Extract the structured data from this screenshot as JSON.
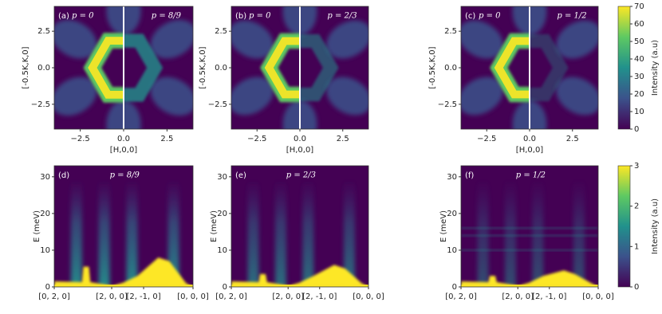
{
  "chart_data": [
    {
      "type": "heatmap",
      "panel_label": "(a)",
      "annotations": [
        "p = 0",
        "p = 8/9"
      ],
      "xlabel": "[H,0,0]",
      "ylabel": "[-0.5K,K,0]",
      "xlim": [
        -4,
        4
      ],
      "ylim": [
        -4.2,
        4.2
      ],
      "xticks": [
        {
          "value": -2.5,
          "label": "−2.5"
        },
        {
          "value": 0,
          "label": "0.0"
        },
        2.5
      ],
      "yticks": [
        {
          "value": -2.5,
          "label": "−2.5"
        },
        {
          "value": 0,
          "label": "0.0"
        },
        2.5
      ]
    },
    {
      "type": "heatmap",
      "panel_label": "(b)",
      "annotations": [
        "p = 0",
        "p = 2/3"
      ],
      "xlabel": "[H,0,0]",
      "ylabel": "[-0.5K,K,0]",
      "xlim": [
        -4,
        4
      ],
      "ylim": [
        -4.2,
        4.2
      ],
      "xticks": [
        {
          "value": -2.5,
          "label": "−2.5"
        },
        {
          "value": 0,
          "label": "0.0"
        },
        2.5
      ],
      "yticks": [
        {
          "value": -2.5,
          "label": "−2.5"
        },
        {
          "value": 0,
          "label": "0.0"
        },
        2.5
      ]
    },
    {
      "type": "heatmap",
      "panel_label": "(c)",
      "annotations": [
        "p = 0",
        "p = 1/2"
      ],
      "xlabel": "[H,0,0]",
      "ylabel": "[-0.5K,K,0]",
      "xlim": [
        -4,
        4
      ],
      "ylim": [
        -4.2,
        4.2
      ],
      "xticks": [
        {
          "value": -2.5,
          "label": "−2.5"
        },
        {
          "value": 0,
          "label": "0.0"
        },
        2.5
      ],
      "yticks": [
        {
          "value": -2.5,
          "label": "−2.5"
        },
        {
          "value": 0,
          "label": "0.0"
        },
        2.5
      ],
      "colorbar": {
        "label": "Intensity (a.u)",
        "lim": [
          0,
          70
        ],
        "ticks": [
          0,
          10,
          20,
          30,
          40,
          50,
          60,
          70
        ]
      }
    },
    {
      "type": "heatmap",
      "panel_label": "(d)",
      "annotations": [
        "p = 8/9"
      ],
      "ylabel": "E (meV)",
      "xlim": [
        0,
        1
      ],
      "ylim": [
        0,
        33
      ],
      "xticks": [
        {
          "value": 0,
          "label": "[0, 2, 0]"
        },
        {
          "value": 0.414,
          "label": "[2, 0, 0]"
        },
        {
          "value": 0.644,
          "label": "[2, -1, 0]"
        },
        {
          "value": 1,
          "label": "[0, 0, 0]"
        }
      ],
      "yticks": [
        0,
        10,
        20,
        30
      ]
    },
    {
      "type": "heatmap",
      "panel_label": "(e)",
      "annotations": [
        "p = 2/3"
      ],
      "ylabel": "E (meV)",
      "xlim": [
        0,
        1
      ],
      "ylim": [
        0,
        33
      ],
      "xticks": [
        {
          "value": 0,
          "label": "[0, 2, 0]"
        },
        {
          "value": 0.414,
          "label": "[2, 0, 0]"
        },
        {
          "value": 0.644,
          "label": "[2, -1, 0]"
        },
        {
          "value": 1,
          "label": "[0, 0, 0]"
        }
      ],
      "yticks": [
        0,
        10,
        20,
        30
      ]
    },
    {
      "type": "heatmap",
      "panel_label": "(f)",
      "annotations": [
        "p = 1/2"
      ],
      "ylabel": "E (meV)",
      "xlim": [
        0,
        1
      ],
      "ylim": [
        0,
        33
      ],
      "xticks": [
        {
          "value": 0,
          "label": "[0, 2, 0]"
        },
        {
          "value": 0.414,
          "label": "[2, 0, 0]"
        },
        {
          "value": 0.644,
          "label": "[2, -1, 0]"
        },
        {
          "value": 1,
          "label": "[0, 0, 0]"
        }
      ],
      "yticks": [
        0,
        10,
        20,
        30
      ],
      "colorbar": {
        "label": "Intensity (a.u)",
        "lim": [
          0,
          3
        ],
        "ticks": [
          0,
          1,
          2,
          3
        ]
      }
    }
  ]
}
